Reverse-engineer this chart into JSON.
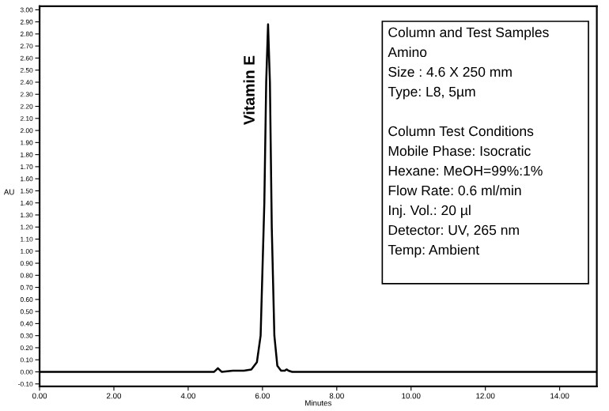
{
  "chart_data": {
    "type": "line",
    "xlabel": "Minutes",
    "ylabel": "AU",
    "color": "#000000",
    "x": [
      0,
      1,
      2,
      3,
      4,
      4.7,
      4.8,
      4.9,
      5.2,
      5.5,
      5.7,
      5.85,
      5.95,
      6.05,
      6.1,
      6.15,
      6.2,
      6.25,
      6.32,
      6.4,
      6.5,
      6.6,
      6.65,
      6.7,
      6.8,
      8,
      10,
      12,
      14,
      15
    ],
    "values": [
      0,
      0,
      0,
      0,
      0,
      0,
      0.03,
      0,
      0.01,
      0.01,
      0.02,
      0.08,
      0.3,
      1.4,
      2.4,
      2.88,
      2.4,
      1.2,
      0.3,
      0.05,
      0.01,
      0.01,
      0.02,
      0.01,
      0,
      0,
      0,
      0,
      0,
      0
    ],
    "xlim": [
      0,
      15
    ],
    "ylim": [
      -0.12,
      3.03
    ],
    "xticks": [
      {
        "value": 0,
        "label": "0.00"
      },
      {
        "value": 2,
        "label": "2.00"
      },
      {
        "value": 4,
        "label": "4.00"
      },
      {
        "value": 6,
        "label": "6.00"
      },
      {
        "value": 8,
        "label": "8.00"
      },
      {
        "value": 10,
        "label": "10.00"
      },
      {
        "value": 12,
        "label": "12.00"
      },
      {
        "value": 14,
        "label": "14.00"
      }
    ],
    "yticks": [
      {
        "value": -0.1,
        "label": "-0.10"
      },
      {
        "value": 0,
        "label": "0.00"
      },
      {
        "value": 0.1,
        "label": "0.10"
      },
      {
        "value": 0.2,
        "label": "0.20"
      },
      {
        "value": 0.3,
        "label": "0.30"
      },
      {
        "value": 0.4,
        "label": "0.40"
      },
      {
        "value": 0.5,
        "label": "0.50"
      },
      {
        "value": 0.6,
        "label": "0.60"
      },
      {
        "value": 0.7,
        "label": "0.70"
      },
      {
        "value": 0.8,
        "label": "0.80"
      },
      {
        "value": 0.9,
        "label": "0.90"
      },
      {
        "value": 1.0,
        "label": "1.00"
      },
      {
        "value": 1.1,
        "label": "1.10"
      },
      {
        "value": 1.2,
        "label": "1.20"
      },
      {
        "value": 1.3,
        "label": "1.30"
      },
      {
        "value": 1.4,
        "label": "1.40"
      },
      {
        "value": 1.5,
        "label": "1.50"
      },
      {
        "value": 1.6,
        "label": "1.60"
      },
      {
        "value": 1.7,
        "label": "1.70"
      },
      {
        "value": 1.8,
        "label": "1.80"
      },
      {
        "value": 1.9,
        "label": "1.90"
      },
      {
        "value": 2.0,
        "label": "2.00"
      },
      {
        "value": 2.1,
        "label": "2.10"
      },
      {
        "value": 2.2,
        "label": "2.20"
      },
      {
        "value": 2.3,
        "label": "2.30"
      },
      {
        "value": 2.4,
        "label": "2.40"
      },
      {
        "value": 2.5,
        "label": "2.50"
      },
      {
        "value": 2.6,
        "label": "2.60"
      },
      {
        "value": 2.7,
        "label": "2.70"
      },
      {
        "value": 2.8,
        "label": "2.80"
      },
      {
        "value": 2.9,
        "label": "2.90"
      },
      {
        "value": 3.0,
        "label": "3.00"
      }
    ],
    "grid": false,
    "legend": false,
    "annotations": [
      {
        "text": "Vitamin E",
        "x": 6.15,
        "y": 2.88
      },
      "Column and Test Samples",
      "Amino",
      "Size : 4.6 X 250 mm",
      "Type: L8, 5µm",
      "Column Test Conditions",
      "Mobile Phase: Isocratic",
      "Hexane: MeOH=99%:1%",
      "Flow Rate: 0.6 ml/min",
      "Inj. Vol.: 20 µl",
      "Detector: UV, 265 nm",
      "Temp: Ambient"
    ]
  }
}
